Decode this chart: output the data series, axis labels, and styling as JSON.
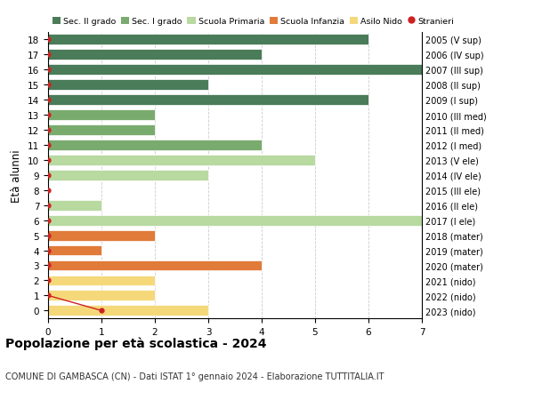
{
  "ages": [
    18,
    17,
    16,
    15,
    14,
    13,
    12,
    11,
    10,
    9,
    8,
    7,
    6,
    5,
    4,
    3,
    2,
    1,
    0
  ],
  "right_labels": [
    "2005 (V sup)",
    "2006 (IV sup)",
    "2007 (III sup)",
    "2008 (II sup)",
    "2009 (I sup)",
    "2010 (III med)",
    "2011 (II med)",
    "2012 (I med)",
    "2013 (V ele)",
    "2014 (IV ele)",
    "2015 (III ele)",
    "2016 (II ele)",
    "2017 (I ele)",
    "2018 (mater)",
    "2019 (mater)",
    "2020 (mater)",
    "2021 (nido)",
    "2022 (nido)",
    "2023 (nido)"
  ],
  "bar_values": [
    6,
    4,
    7,
    3,
    6,
    2,
    2,
    4,
    5,
    3,
    0,
    1,
    7,
    2,
    1,
    4,
    2,
    2,
    3
  ],
  "bar_colors": [
    "#4a7c59",
    "#4a7c59",
    "#4a7c59",
    "#4a7c59",
    "#4a7c59",
    "#7aab6e",
    "#7aab6e",
    "#7aab6e",
    "#b8d9a0",
    "#b8d9a0",
    "#b8d9a0",
    "#b8d9a0",
    "#b8d9a0",
    "#e07b39",
    "#e07b39",
    "#e07b39",
    "#f5d87a",
    "#f5d87a",
    "#f5d87a"
  ],
  "stranieri_x": [
    0,
    0,
    0,
    0,
    0,
    0,
    0,
    0,
    0,
    0,
    0,
    0,
    0,
    0,
    0,
    0,
    0,
    0,
    1
  ],
  "stranieri_line_x": [
    0,
    1
  ],
  "stranieri_line_y": [
    1,
    0
  ],
  "legend_labels": [
    "Sec. II grado",
    "Sec. I grado",
    "Scuola Primaria",
    "Scuola Infanzia",
    "Asilo Nido",
    "Stranieri"
  ],
  "legend_colors": [
    "#4a7c59",
    "#7aab6e",
    "#b8d9a0",
    "#e07b39",
    "#f5d87a",
    "#cc2222"
  ],
  "title": "Popolazione per età scolastica - 2024",
  "subtitle": "COMUNE DI GAMBASCA (CN) - Dati ISTAT 1° gennaio 2024 - Elaborazione TUTTITALIA.IT",
  "ylabel": "Età alunni",
  "xlim": [
    0,
    7
  ],
  "ylim": [
    -0.5,
    18.5
  ],
  "grid_color": "#cccccc",
  "bar_height": 0.7,
  "figsize": [
    6.0,
    4.6
  ],
  "dpi": 100
}
